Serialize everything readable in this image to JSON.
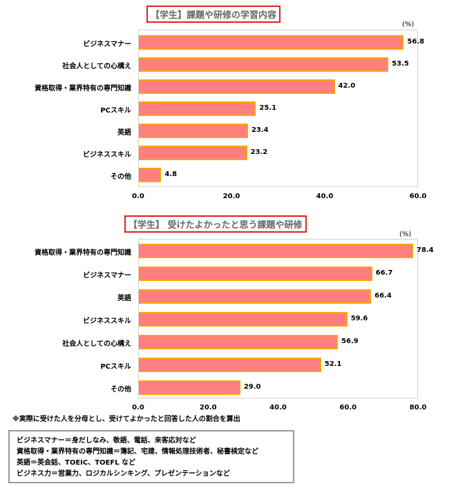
{
  "chart_data": [
    {
      "type": "bar",
      "orientation": "horizontal",
      "title": "【学生】課題や研修の学習内容",
      "unit": "(%)",
      "categories": [
        "ビジネスマナー",
        "社会人としての心構え",
        "資格取得・業界特有の専門知識",
        "PCスキル",
        "英語",
        "ビジネススキル",
        "その他"
      ],
      "values": [
        56.8,
        53.5,
        42.0,
        25.1,
        23.4,
        23.2,
        4.8
      ],
      "xlim": [
        0,
        60
      ],
      "ticks": [
        "0.0",
        "20.0",
        "40.0",
        "60.0"
      ],
      "grid": false,
      "bar_color": "#FF7F7F",
      "bar_edge_color": "#FFA500"
    },
    {
      "type": "bar",
      "orientation": "horizontal",
      "title": "【学生】 受けたよかったと思う課題や研修",
      "unit": "(%)",
      "categories": [
        "資格取得・業界特有の専門知識",
        "ビジネスマナー",
        "英語",
        "ビジネススキル",
        "社会人としての心構え",
        "PCスキル",
        "その他"
      ],
      "values": [
        78.4,
        66.7,
        66.4,
        59.6,
        56.9,
        52.1,
        29.0
      ],
      "xlim": [
        0,
        80
      ],
      "ticks": [
        "0.0",
        "20.0",
        "40.0",
        "60.0",
        "80.0"
      ],
      "grid": false,
      "bar_color": "#FF7F7F",
      "bar_edge_color": "#FFA500"
    }
  ],
  "note": "※実際に受けた人を分母とし、受けてよかったと回答した人の割合を算出",
  "definitions": [
    "ビジネスマナー＝身だしなみ、敬語、電話、来客応対など",
    "資格取得・業界特有の専門知識＝簿記、宅建、情報処理技術者、秘書検定など",
    "英語＝英会話、TOEIC、TOEFL など",
    "ビジネス力＝営業力、ロジカルシンキング、プレゼンテーションなど"
  ]
}
